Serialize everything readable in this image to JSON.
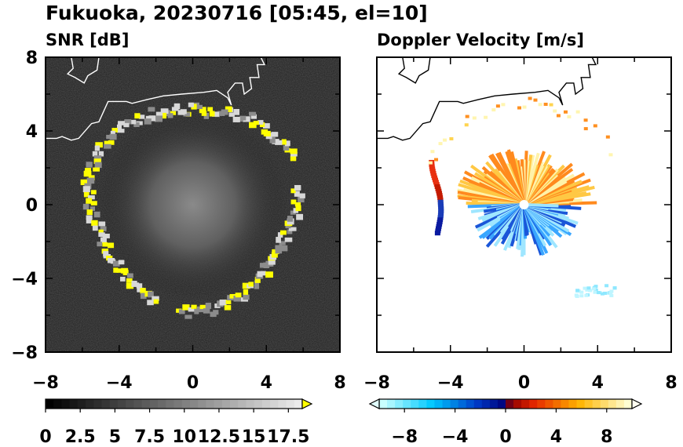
{
  "title": "Fukuoka, 20230716 [05:45, el=10]",
  "chart_data": [
    {
      "type": "heatmap",
      "title": "SNR [dB]",
      "xlim": [
        -8,
        8
      ],
      "ylim": [
        -8,
        8
      ],
      "x_ticks": [
        "−8",
        "−4",
        "0",
        "4",
        "8"
      ],
      "y_ticks": [
        "8",
        "4",
        "0",
        "−4",
        "−8"
      ],
      "colorbar": {
        "min": 0,
        "max": 18.5,
        "extend": "max",
        "tick_labels": [
          "0",
          "2.5",
          "5",
          "7.5",
          "10",
          "12.5",
          "15",
          "17.5"
        ],
        "tick_values": [
          0,
          2.5,
          5,
          7.5,
          10,
          12.5,
          15,
          17.5
        ],
        "colors": [
          "#000000",
          "#ffffff",
          "#ffff00"
        ]
      }
    },
    {
      "type": "heatmap",
      "title": "Doppler Velocity [m/s]",
      "xlim": [
        -8,
        8
      ],
      "ylim": [
        -8,
        8
      ],
      "x_ticks": [
        "−8",
        "−4",
        "0",
        "4",
        "8"
      ],
      "y_ticks": [],
      "colorbar": {
        "min": -10,
        "max": 10,
        "extend": "both",
        "tick_labels": [
          "−8",
          "−4",
          "0",
          "4",
          "8"
        ],
        "tick_values": [
          -8,
          -4,
          0,
          4,
          8
        ],
        "colors": [
          "#e0ffff",
          "#00c8ff",
          "#0000a0",
          "#8b0000",
          "#ff4000",
          "#ffcc00",
          "#ffffe0"
        ]
      }
    }
  ]
}
